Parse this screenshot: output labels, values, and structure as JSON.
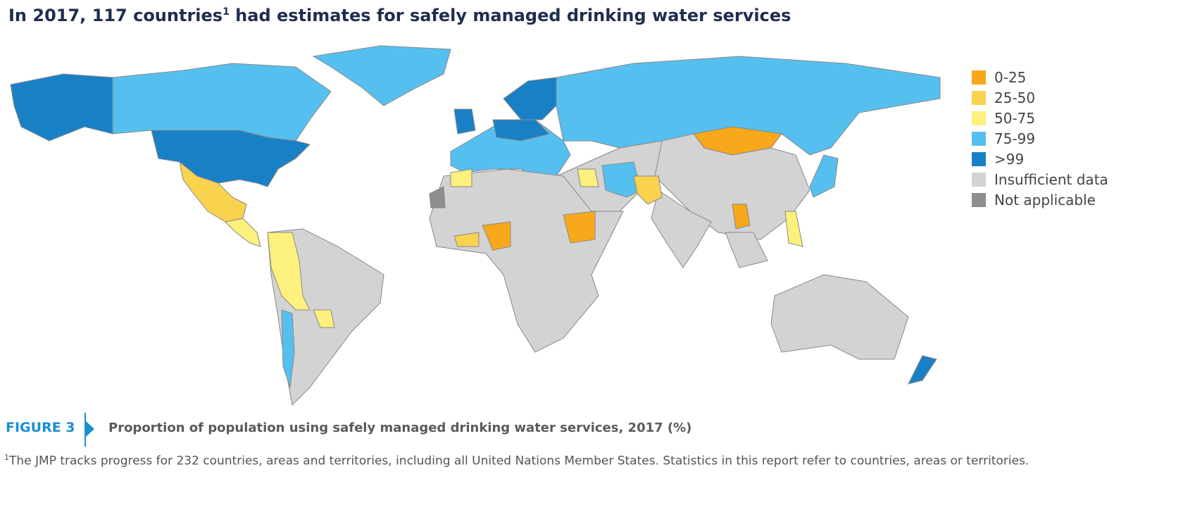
{
  "header": {
    "title": [
      "In 2017, 117 countries",
      "1",
      " had estimates for safely managed drinking water services"
    ]
  },
  "legend": [
    {
      "label": "0-25",
      "color": "#f7a81b"
    },
    {
      "label": "25-50",
      "color": "#f9d24e"
    },
    {
      "label": "50-75",
      "color": "#fcf07e"
    },
    {
      "label": "75-99",
      "color": "#55c0ef"
    },
    {
      "label": ">99",
      "color": "#1a80c6"
    },
    {
      "label": "Insufficient data",
      "color": "#d3d3d3"
    },
    {
      "label": "Not applicable",
      "color": "#8e8e8e"
    }
  ],
  "figure": {
    "label": "FIGURE 3",
    "caption": "Proportion of population using safely managed drinking water services, 2017 (%)"
  },
  "footnote": [
    "1",
    "The JMP tracks progress for 232 countries, areas and territories, including all United Nations Member States. Statistics in this report refer to countries, areas or territories."
  ]
}
